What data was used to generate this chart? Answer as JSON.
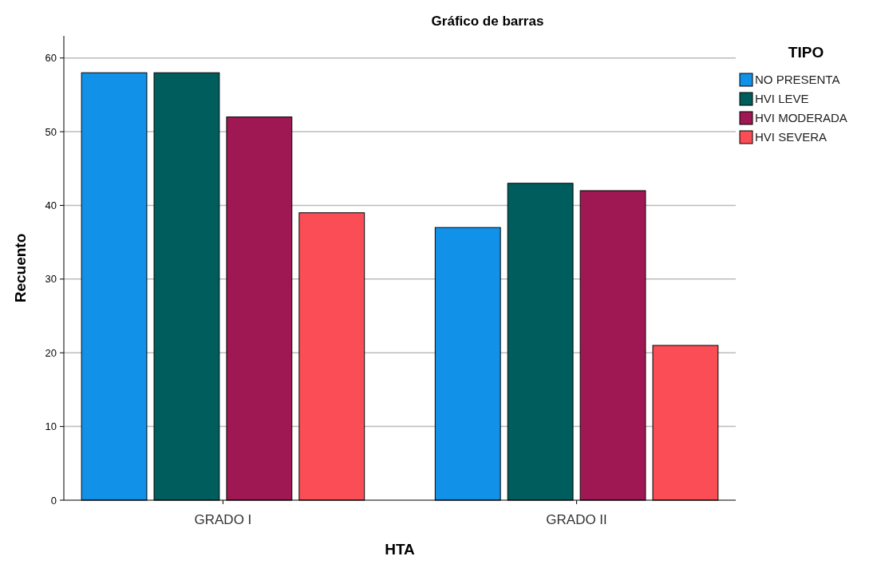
{
  "chart_data": {
    "type": "bar",
    "title": "Gráfico de barras",
    "xlabel": "HTA",
    "ylabel": "Recuento",
    "legend_title": "TIPO",
    "categories": [
      "GRADO I",
      "GRADO II"
    ],
    "series": [
      {
        "name": "NO PRESENTA",
        "color": "#1192e8",
        "values": [
          58,
          37
        ]
      },
      {
        "name": "HVI LEVE",
        "color": "#005d5d",
        "values": [
          58,
          43
        ]
      },
      {
        "name": "HVI MODERADA",
        "color": "#9f1853",
        "values": [
          52,
          42
        ]
      },
      {
        "name": "HVI SEVERA",
        "color": "#fa4d56",
        "values": [
          39,
          21
        ]
      }
    ],
    "ylim": [
      0,
      63
    ],
    "yticks": [
      0,
      10,
      20,
      30,
      40,
      50,
      60
    ],
    "grid": "y",
    "legend": "top right"
  }
}
